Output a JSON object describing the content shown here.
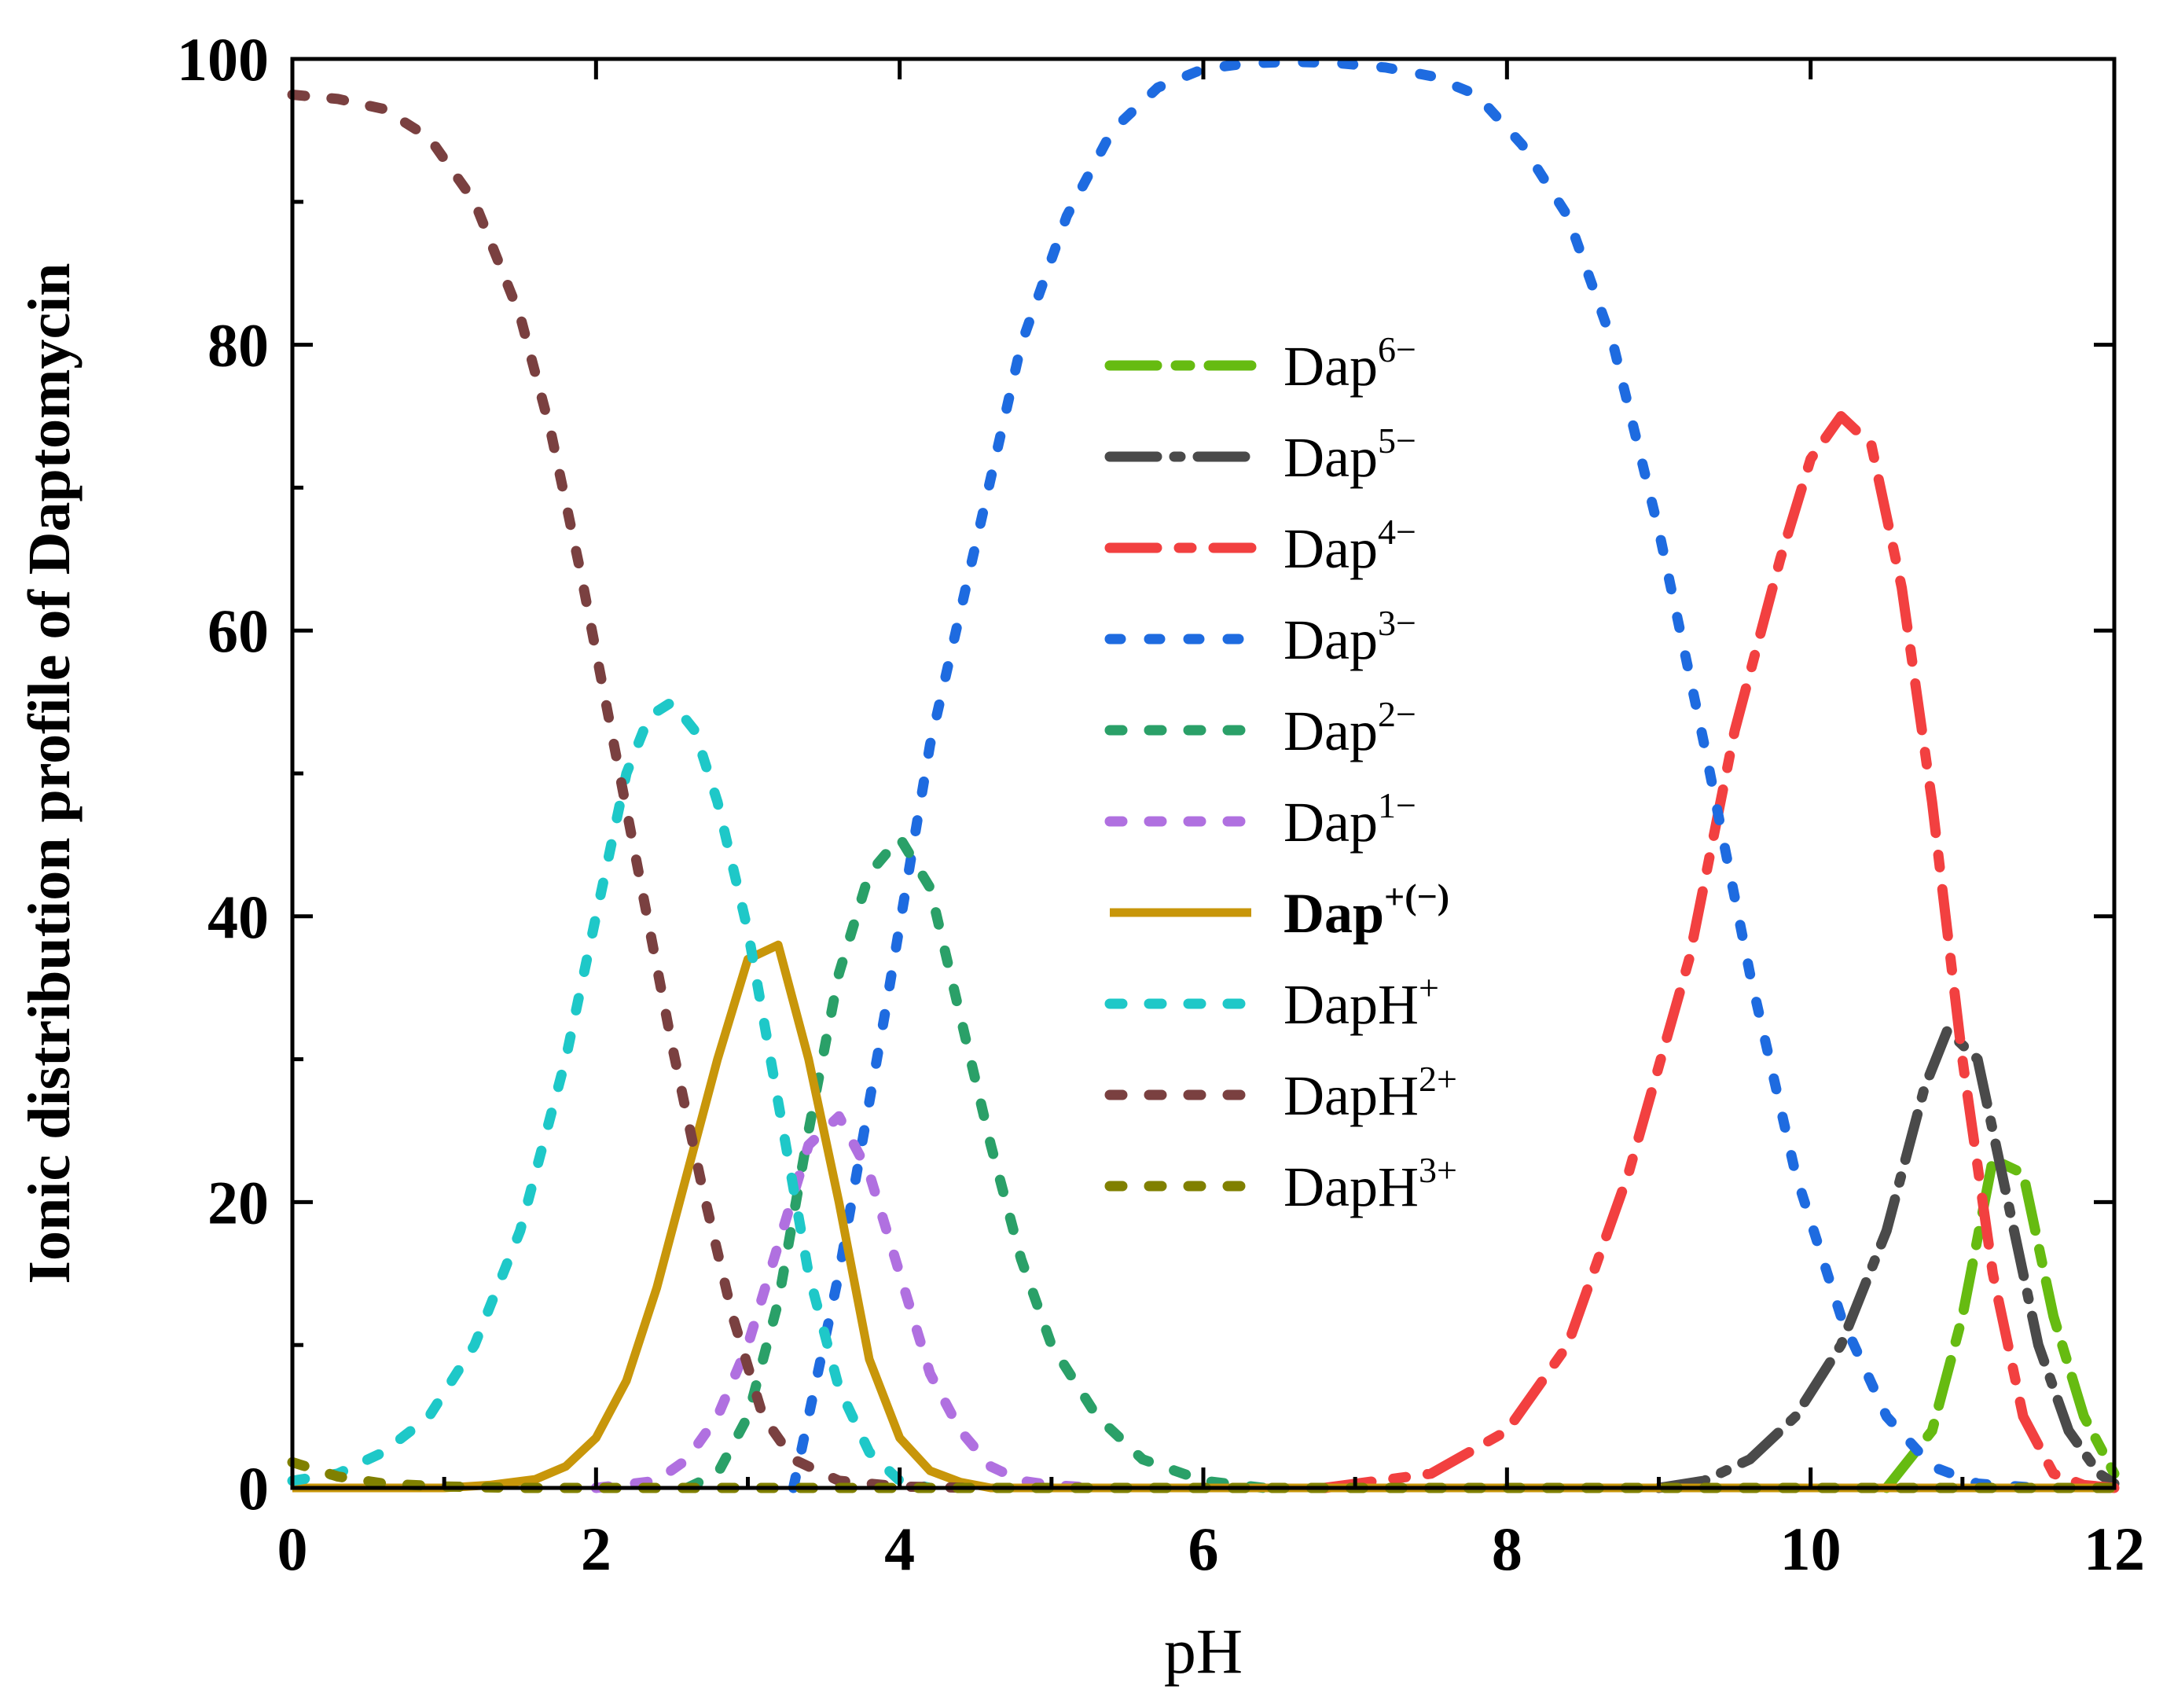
{
  "chart_data": {
    "type": "line",
    "xlabel": "pH",
    "ylabel": "Ionic distribution profile of Daptomycin",
    "xlim": [
      0,
      12
    ],
    "ylim": [
      0,
      100
    ],
    "xticks": [
      "0",
      "2",
      "4",
      "6",
      "8",
      "10",
      "12"
    ],
    "yticks": [
      "0",
      "20",
      "40",
      "60",
      "80",
      "100"
    ],
    "grid": false,
    "legend_position": "center-right",
    "series": [
      {
        "name": "Dap",
        "sup": "6−",
        "color": "#66bb11",
        "dash": "60,24,18,24",
        "bold": false,
        "x": [
          10.5,
          10.8,
          11.0,
          11.2,
          11.4,
          11.6,
          11.8,
          12.0
        ],
        "y": [
          0,
          4,
          12,
          23,
          22,
          12,
          5,
          1
        ]
      },
      {
        "name": "Dap",
        "sup": "5−",
        "color": "#4a4a4a",
        "dash": "60,22,8,22",
        "bold": false,
        "x": [
          9.0,
          9.3,
          9.6,
          9.9,
          10.2,
          10.5,
          10.75,
          10.9,
          11.1,
          11.3,
          11.5,
          11.7,
          11.9,
          12.0
        ],
        "y": [
          0,
          0.5,
          2,
          5,
          10,
          18,
          28,
          32,
          30,
          20,
          10,
          4,
          1,
          0.3
        ]
      },
      {
        "name": "Dap",
        "sup": "4−",
        "color": "#f24040",
        "dash": "60,28,16,28",
        "bold": false,
        "x": [
          6.8,
          7.5,
          8.0,
          8.4,
          8.8,
          9.2,
          9.5,
          9.8,
          10.0,
          10.2,
          10.4,
          10.6,
          10.8,
          11.0,
          11.2,
          11.4,
          11.6,
          11.8,
          12.0
        ],
        "y": [
          0,
          1,
          4,
          10,
          22,
          37,
          53,
          65,
          72,
          75,
          73,
          63,
          48,
          30,
          15,
          5,
          1,
          0.2,
          0
        ]
      },
      {
        "name": "Dap",
        "sup": "3−",
        "color": "#1e6be0",
        "dash": "14,36",
        "bold": false,
        "x": [
          3.3,
          3.6,
          3.9,
          4.2,
          4.5,
          4.8,
          5.1,
          5.4,
          5.7,
          6.0,
          6.3,
          6.6,
          6.9,
          7.2,
          7.5,
          7.8,
          8.1,
          8.4,
          8.7,
          9.0,
          9.3,
          9.6,
          9.9,
          10.2,
          10.5,
          10.8,
          11.1,
          11.5
        ],
        "y": [
          0,
          15,
          33,
          52,
          66,
          80,
          89,
          95,
          98,
          99.3,
          99.7,
          99.8,
          99.7,
          99.4,
          98.8,
          97.5,
          94,
          89,
          80,
          67,
          52,
          36,
          22,
          12,
          5,
          1.5,
          0.3,
          0
        ]
      },
      {
        "name": "Dap",
        "sup": "2−",
        "color": "#2aa068",
        "dash": "16,34",
        "bold": false,
        "x": [
          2.6,
          2.8,
          3.0,
          3.2,
          3.4,
          3.6,
          3.8,
          4.0,
          4.2,
          4.4,
          4.6,
          4.8,
          5.0,
          5.3,
          5.6,
          6.0,
          6.4
        ],
        "y": [
          0,
          1,
          5,
          13,
          25,
          36,
          43,
          45.5,
          42,
          33,
          24,
          16,
          10,
          5,
          2,
          0.5,
          0
        ]
      },
      {
        "name": "Dap",
        "sup": "1−",
        "color": "#b070e0",
        "dash": "16,34",
        "bold": false,
        "x": [
          2.0,
          2.4,
          2.6,
          2.8,
          3.0,
          3.2,
          3.4,
          3.6,
          3.8,
          4.0,
          4.2,
          4.4,
          4.6,
          4.8,
          5.0,
          5.3
        ],
        "y": [
          0,
          0.5,
          2,
          5,
          10,
          17,
          24,
          26,
          22,
          15,
          8,
          4,
          1.5,
          0.5,
          0.2,
          0
        ]
      },
      {
        "name": "Dap",
        "sup": "+(−)",
        "color": "#c8960a",
        "dash": "",
        "bold": true,
        "x": [
          0,
          1.0,
          1.3,
          1.6,
          1.8,
          2.0,
          2.2,
          2.4,
          2.6,
          2.8,
          3.0,
          3.2,
          3.4,
          3.6,
          3.8,
          4.0,
          4.2,
          4.4,
          4.6,
          5.0,
          12.0
        ],
        "y": [
          0,
          0,
          0.2,
          0.6,
          1.5,
          3.5,
          7.5,
          14,
          22,
          30,
          37,
          38,
          30,
          20,
          9,
          3.5,
          1.2,
          0.4,
          0,
          0,
          0
        ]
      },
      {
        "name": "DapH",
        "sup": "+",
        "color": "#1ec8c8",
        "dash": "16,34",
        "bold": false,
        "x": [
          0,
          0.3,
          0.6,
          0.9,
          1.2,
          1.5,
          1.8,
          2.0,
          2.2,
          2.35,
          2.5,
          2.65,
          2.8,
          3.0,
          3.2,
          3.4,
          3.6,
          3.8,
          4.0,
          4.2
        ],
        "y": [
          0.5,
          1,
          2.5,
          5,
          10,
          18,
          30,
          40,
          50,
          54,
          55,
          53,
          48,
          39,
          27,
          15,
          7,
          2.5,
          0.5,
          0
        ]
      },
      {
        "name": "DapH",
        "sup": "2+",
        "color": "#7a4040",
        "dash": "16,34",
        "bold": false,
        "x": [
          0,
          0.3,
          0.6,
          0.9,
          1.2,
          1.5,
          1.7,
          1.9,
          2.1,
          2.3,
          2.5,
          2.7,
          2.9,
          3.1,
          3.3,
          3.6,
          4.0,
          4.5
        ],
        "y": [
          97.5,
          97.2,
          96.5,
          94.5,
          90,
          82,
          74,
          64,
          53,
          42,
          31,
          21,
          12,
          5,
          2,
          0.5,
          0.1,
          0
        ]
      },
      {
        "name": "DapH",
        "sup": "3+",
        "color": "#808000",
        "dash": "16,34",
        "bold": false,
        "x": [
          0,
          0.3,
          0.6,
          1.0,
          1.5,
          2.0,
          12.0
        ],
        "y": [
          1.8,
          0.8,
          0.3,
          0.1,
          0,
          0,
          0
        ]
      }
    ]
  }
}
